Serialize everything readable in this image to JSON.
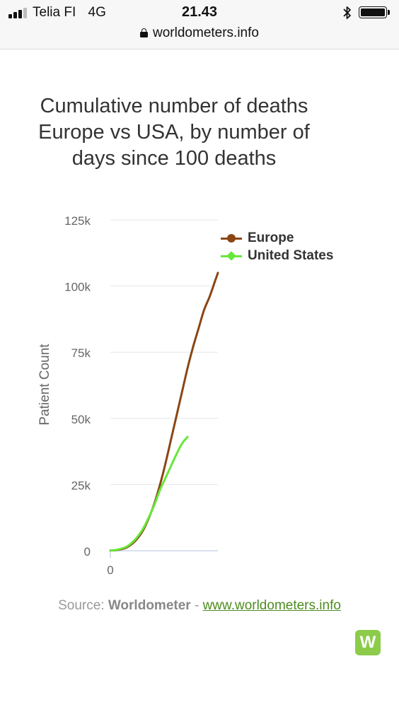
{
  "status_bar": {
    "carrier": "Telia FI",
    "network": "4G",
    "time": "21.43",
    "url": "worldometers.info"
  },
  "icons": {
    "signal": "signal-strength-icon",
    "bluetooth": "bluetooth-icon",
    "battery": "battery-icon",
    "lock": "lock-icon"
  },
  "chart_data": {
    "type": "line",
    "title": "Cumulative number of deaths Europe vs USA, by number of days since 100 deaths",
    "ylabel": "Patient Count",
    "xlabel": "",
    "ylim": [
      0,
      125000
    ],
    "xlim": [
      0,
      39
    ],
    "y_ticks": [
      0,
      25000,
      50000,
      75000,
      100000,
      125000
    ],
    "y_tick_labels": [
      "0",
      "25k",
      "50k",
      "75k",
      "100k",
      "125k"
    ],
    "x_tick_labels": [
      "0"
    ],
    "grid": true,
    "legend_position": "top-right",
    "series": [
      {
        "name": "Europe",
        "color": "#8b4513",
        "marker": "circle",
        "x": [
          0,
          2,
          4,
          6,
          8,
          10,
          12,
          14,
          16,
          18,
          20,
          22,
          24,
          26,
          28,
          30,
          32,
          34,
          36,
          38,
          39
        ],
        "y": [
          100,
          250,
          600,
          1300,
          2700,
          4900,
          8000,
          12500,
          18000,
          25000,
          33000,
          42000,
          51000,
          60000,
          69000,
          77000,
          84000,
          91000,
          96000,
          102000,
          105000
        ]
      },
      {
        "name": "United States",
        "color": "#66e83a",
        "marker": "diamond",
        "x": [
          0,
          2,
          4,
          6,
          8,
          10,
          12,
          14,
          16,
          18,
          20,
          22,
          24,
          26,
          28
        ],
        "y": [
          100,
          300,
          800,
          1600,
          3200,
          5500,
          8600,
          12800,
          17500,
          23000,
          27500,
          32000,
          36500,
          40500,
          43000
        ]
      }
    ]
  },
  "source": {
    "prefix": "Source: ",
    "name": "Worldometer",
    "separator": " - ",
    "link": "www.worldometers.info"
  },
  "logo": {
    "letter": "W",
    "color": "#8ccc4a"
  }
}
